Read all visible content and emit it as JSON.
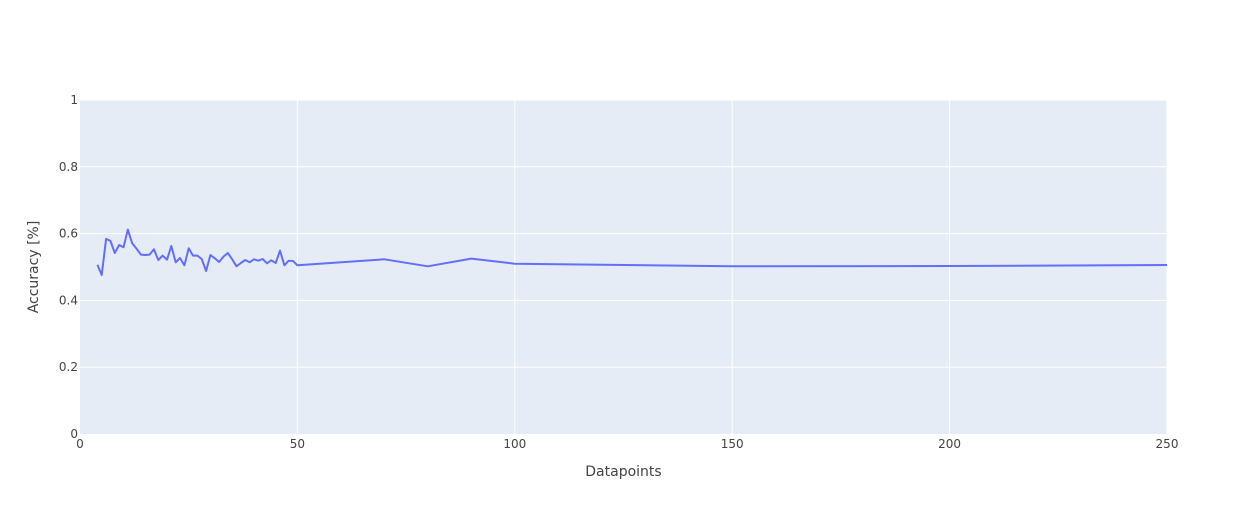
{
  "chart_data": {
    "type": "line",
    "title": "",
    "xlabel": "Datapoints",
    "ylabel": "Accuracy [%]",
    "xlim": [
      0,
      250
    ],
    "ylim": [
      0,
      1
    ],
    "x_ticks": [
      0,
      50,
      100,
      150,
      200,
      250
    ],
    "x_tick_labels": [
      "0",
      "50",
      "100",
      "150",
      "200",
      "250"
    ],
    "y_ticks": [
      0,
      0.2,
      0.4,
      0.6,
      0.8,
      1
    ],
    "y_tick_labels": [
      "0",
      "0.2",
      "0.4",
      "0.6",
      "0.8",
      "1"
    ],
    "grid": true,
    "legend": false,
    "colors": {
      "plot_background": "#e5ecf6",
      "grid": "#ffffff",
      "line": "#636efa",
      "text": "#444444"
    },
    "series": [
      {
        "x": [
          4,
          5,
          6,
          7,
          8,
          9,
          10,
          11,
          12,
          13,
          14,
          15,
          16,
          17,
          18,
          19,
          20,
          21,
          22,
          23,
          24,
          25,
          26,
          27,
          28,
          29,
          30,
          31,
          32,
          33,
          34,
          35,
          36,
          37,
          38,
          39,
          40,
          41,
          42,
          43,
          44,
          45,
          46,
          47,
          48,
          49,
          50,
          70,
          80,
          90,
          100,
          150,
          200,
          250
        ],
        "y": [
          0.507,
          0.476,
          0.584,
          0.578,
          0.542,
          0.566,
          0.559,
          0.612,
          0.571,
          0.555,
          0.537,
          0.536,
          0.537,
          0.553,
          0.521,
          0.534,
          0.522,
          0.563,
          0.514,
          0.527,
          0.505,
          0.556,
          0.534,
          0.534,
          0.524,
          0.488,
          0.536,
          0.526,
          0.515,
          0.531,
          0.542,
          0.523,
          0.502,
          0.512,
          0.521,
          0.514,
          0.523,
          0.519,
          0.524,
          0.511,
          0.52,
          0.512,
          0.549,
          0.505,
          0.519,
          0.518,
          0.505,
          0.523,
          0.502,
          0.525,
          0.51,
          0.502,
          0.503,
          0.506
        ]
      }
    ]
  }
}
